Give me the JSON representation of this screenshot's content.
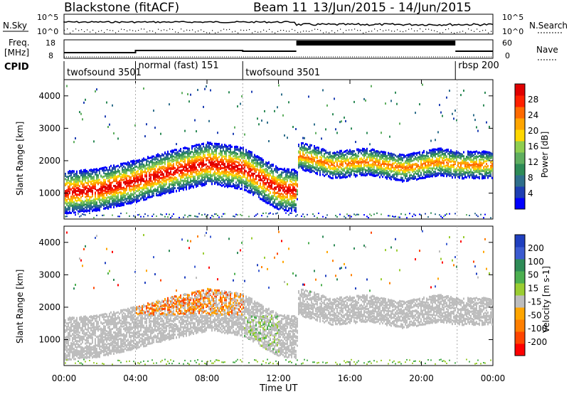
{
  "header": {
    "radar": "Blackstone (fitACF)",
    "beam": "Beam 11",
    "date_range": "13/Jun/2015 - 14/Jun/2015"
  },
  "top_panels": {
    "nsky_label": "N.Sky",
    "nsearch_label": "N.Search",
    "freq_label_1": "Freq.",
    "freq_label_2": "[MHz]",
    "nave_label": "Nave",
    "cpid_label": "CPID",
    "left_ticks_noise": [
      "10^5",
      "10^0"
    ],
    "right_ticks_noise": [
      "10^5",
      "10^0"
    ],
    "left_ticks_freq": [
      "18",
      "8"
    ],
    "right_ticks_nave": [
      "60",
      "0"
    ],
    "cpid_segments": [
      {
        "label": "twofsound 3501",
        "start_h": 0.0
      },
      {
        "label": "normal (fast) 151",
        "start_h": 4.0
      },
      {
        "label": "twofsound 3501",
        "start_h": 10.0
      },
      {
        "label": "rbsp 200",
        "start_h": 21.9
      }
    ]
  },
  "colors": {
    "power": [
      "#0000ff",
      "#1e3fb3",
      "#2f6f8c",
      "#2e8b57",
      "#5fae5f",
      "#8fce4f",
      "#ffd700",
      "#ffa500",
      "#ff6a00",
      "#ff2000",
      "#e00000"
    ],
    "velocity": [
      "#1f3fbf",
      "#3b5bd0",
      "#2e8b57",
      "#4caf50",
      "#9acd32",
      "#bdbdbd",
      "#ffa500",
      "#ff7f00",
      "#ff4500",
      "#ff0000"
    ]
  },
  "chart_data": [
    {
      "type": "heatmap",
      "name": "power",
      "ylabel": "Slant Range [km]",
      "colorbar_label": "Power [dB]",
      "colorbar_ticks": [
        "28",
        "24",
        "20",
        "16",
        "12",
        "8",
        "4"
      ],
      "y_ticks": [
        "4000",
        "3000",
        "2000",
        "1000"
      ],
      "x_ticks": [
        "00:00",
        "04:00",
        "08:00",
        "12:00",
        "16:00",
        "20:00",
        "00:00"
      ],
      "ylim": [
        200,
        4500
      ],
      "xlim_hours": [
        0,
        24
      ],
      "scatter_band_center_km": [
        [
          0,
          1050
        ],
        [
          2,
          1150
        ],
        [
          4,
          1400
        ],
        [
          6,
          1700
        ],
        [
          8,
          1950
        ],
        [
          10,
          1800
        ],
        [
          12,
          1150
        ],
        [
          13,
          1100
        ],
        [
          13.1,
          2200
        ],
        [
          15,
          1900
        ],
        [
          17,
          2000
        ],
        [
          19,
          1800
        ],
        [
          21,
          2000
        ],
        [
          22,
          1900
        ]
      ]
    },
    {
      "type": "heatmap",
      "name": "velocity",
      "ylabel": "Slant Range [km]",
      "colorbar_label": "Velocity [m s-1]",
      "colorbar_ticks": [
        "200",
        "100",
        "50",
        "15",
        "-15",
        "-50",
        "-100",
        "-200"
      ],
      "y_ticks": [
        "4000",
        "3000",
        "2000",
        "1000"
      ],
      "x_ticks": [
        "00:00",
        "04:00",
        "08:00",
        "12:00",
        "16:00",
        "20:00",
        "00:00"
      ],
      "xlabel": "Time UT",
      "ylim": [
        200,
        4500
      ],
      "xlim_hours": [
        0,
        24
      ]
    }
  ]
}
